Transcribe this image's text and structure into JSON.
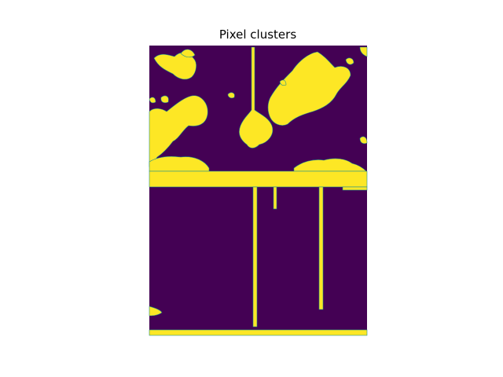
{
  "chart_data": {
    "type": "heatmap",
    "title": "Pixel clusters",
    "xlabel": "",
    "ylabel": "",
    "axes_visible": false,
    "colormap": "viridis",
    "n_clusters": 2,
    "cluster_colors": [
      "#440154",
      "#fde725"
    ],
    "edge_color": "#21918c",
    "grid": false
  }
}
